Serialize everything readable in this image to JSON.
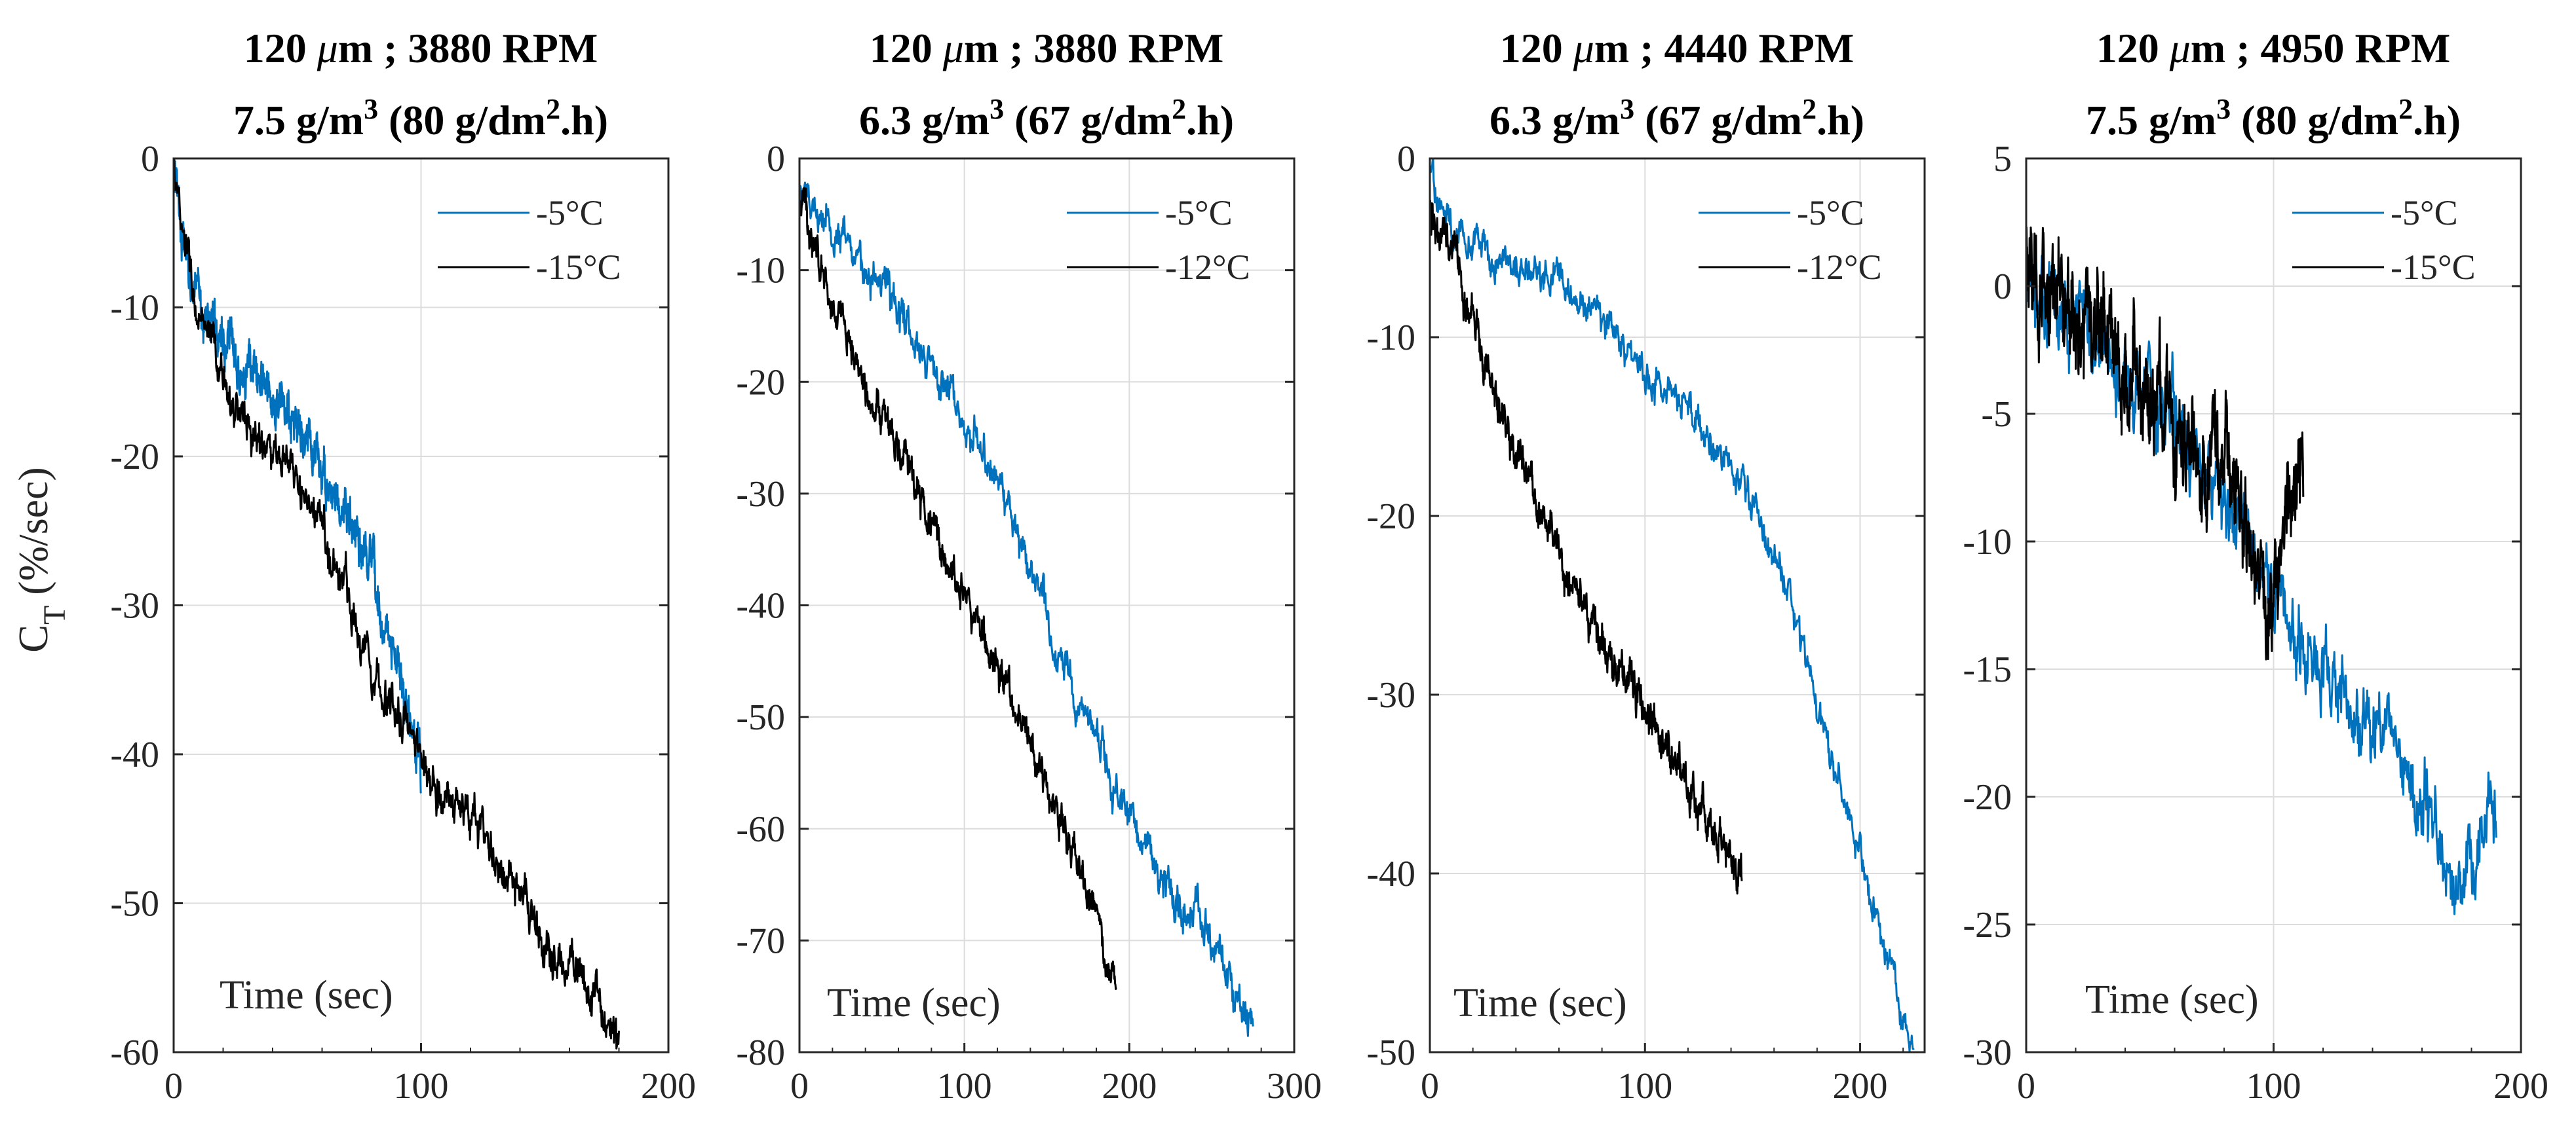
{
  "figure": {
    "ylabel_main": "C",
    "ylabel_sub": "T",
    "ylabel_rest": " (%/sec)"
  },
  "chart_data": [
    {
      "type": "line",
      "title_line1_a": "120 ",
      "title_line1_mu": "μ",
      "title_line1_b": "m ; 3880 RPM",
      "title_line2_a": "7.5 g/m",
      "title_line2_sup": "3",
      "title_line2_b": " (80 g/dm",
      "title_line2_sup2": "2",
      "title_line2_c": ".h)",
      "xlabel": "Time (sec)",
      "ylabel": "CT (%/sec)",
      "xlim": [
        0,
        200
      ],
      "ylim": [
        -60,
        0
      ],
      "xticks": [
        0,
        100,
        200
      ],
      "yticks": [
        0,
        -10,
        -20,
        -30,
        -40,
        -50,
        -60
      ],
      "xtick_labels": [
        "0",
        "100",
        "200"
      ],
      "ytick_labels": [
        "0",
        "-10",
        "-20",
        "-30",
        "-40",
        "-50",
        "-60"
      ],
      "grid": true,
      "legend_position": "top-right",
      "series": [
        {
          "name": "-5°C",
          "color": "#0072BD",
          "x_end": 100,
          "noise": 1.6,
          "points": [
            [
              0,
              0
            ],
            [
              2,
              -4
            ],
            [
              5,
              -7
            ],
            [
              10,
              -10
            ],
            [
              20,
              -12
            ],
            [
              30,
              -14
            ],
            [
              40,
              -16
            ],
            [
              50,
              -18
            ],
            [
              60,
              -21
            ],
            [
              70,
              -24
            ],
            [
              80,
              -28
            ],
            [
              90,
              -34
            ],
            [
              100,
              -41
            ]
          ]
        },
        {
          "name": "-15°C",
          "color": "#000000",
          "x_end": 180,
          "noise": 1.5,
          "points": [
            [
              0,
              0
            ],
            [
              3,
              -5
            ],
            [
              6,
              -7
            ],
            [
              10,
              -11
            ],
            [
              20,
              -15
            ],
            [
              30,
              -18
            ],
            [
              40,
              -20
            ],
            [
              50,
              -22
            ],
            [
              60,
              -25
            ],
            [
              70,
              -29
            ],
            [
              80,
              -34
            ],
            [
              90,
              -37
            ],
            [
              100,
              -40
            ],
            [
              110,
              -43
            ],
            [
              120,
              -44
            ],
            [
              130,
              -47
            ],
            [
              140,
              -50
            ],
            [
              150,
              -53
            ],
            [
              160,
              -54
            ],
            [
              170,
              -56
            ],
            [
              180,
              -60
            ]
          ]
        }
      ]
    },
    {
      "type": "line",
      "title_line1_a": "120 ",
      "title_line1_mu": "μ",
      "title_line1_b": "m ; 3880 RPM",
      "title_line2_a": "6.3 g/m",
      "title_line2_sup": "3",
      "title_line2_b": " (67 g/dm",
      "title_line2_sup2": "2",
      "title_line2_c": ".h)",
      "xlabel": "Time (sec)",
      "ylabel": "",
      "xlim": [
        0,
        300
      ],
      "ylim": [
        -80,
        0
      ],
      "xticks": [
        0,
        100,
        200,
        300
      ],
      "yticks": [
        0,
        -10,
        -20,
        -30,
        -40,
        -50,
        -60,
        -70,
        -80
      ],
      "xtick_labels": [
        "0",
        "100",
        "200",
        "300"
      ],
      "ytick_labels": [
        "0",
        "-10",
        "-20",
        "-30",
        "-40",
        "-50",
        "-60",
        "-70",
        "-80"
      ],
      "grid": true,
      "legend_position": "top-right",
      "series": [
        {
          "name": "-5°C",
          "color": "#0072BD",
          "x_end": 275,
          "noise": 1.8,
          "points": [
            [
              0,
              -3
            ],
            [
              20,
              -6
            ],
            [
              40,
              -10
            ],
            [
              60,
              -13
            ],
            [
              80,
              -18
            ],
            [
              100,
              -23
            ],
            [
              120,
              -29
            ],
            [
              140,
              -36
            ],
            [
              160,
              -45
            ],
            [
              180,
              -52
            ],
            [
              200,
              -59
            ],
            [
              220,
              -64
            ],
            [
              240,
              -68
            ],
            [
              260,
              -73
            ],
            [
              275,
              -77
            ]
          ]
        },
        {
          "name": "-12°C",
          "color": "#000000",
          "x_end": 192,
          "noise": 1.6,
          "points": [
            [
              0,
              -3
            ],
            [
              10,
              -8
            ],
            [
              20,
              -13
            ],
            [
              30,
              -16
            ],
            [
              40,
              -20
            ],
            [
              60,
              -26
            ],
            [
              80,
              -33
            ],
            [
              100,
              -39
            ],
            [
              120,
              -45
            ],
            [
              140,
              -52
            ],
            [
              160,
              -60
            ],
            [
              180,
              -68
            ],
            [
              192,
              -75
            ]
          ]
        }
      ]
    },
    {
      "type": "line",
      "title_line1_a": "120 ",
      "title_line1_mu": "μ",
      "title_line1_b": "m ; 4440 RPM",
      "title_line2_a": "6.3 g/m",
      "title_line2_sup": "3",
      "title_line2_b": " (67 g/dm",
      "title_line2_sup2": "2",
      "title_line2_c": ".h)",
      "xlabel": "Time (sec)",
      "ylabel": "",
      "xlim": [
        0,
        230
      ],
      "ylim": [
        -50,
        0
      ],
      "xticks": [
        0,
        100,
        200
      ],
      "yticks": [
        0,
        -10,
        -20,
        -30,
        -40,
        -50
      ],
      "xtick_labels": [
        "0",
        "100",
        "200"
      ],
      "ytick_labels": [
        "0",
        "-10",
        "-20",
        "-30",
        "-40",
        "-50"
      ],
      "grid": true,
      "legend_position": "top-right",
      "series": [
        {
          "name": "-5°C",
          "color": "#0072BD",
          "x_end": 225,
          "noise": 1.0,
          "points": [
            [
              0,
              0
            ],
            [
              3,
              -2
            ],
            [
              10,
              -4
            ],
            [
              20,
              -5
            ],
            [
              40,
              -6
            ],
            [
              60,
              -7
            ],
            [
              80,
              -9
            ],
            [
              100,
              -12
            ],
            [
              120,
              -14
            ],
            [
              140,
              -17
            ],
            [
              150,
              -19
            ],
            [
              160,
              -22
            ],
            [
              170,
              -26
            ],
            [
              180,
              -30
            ],
            [
              190,
              -35
            ],
            [
              200,
              -39
            ],
            [
              210,
              -44
            ],
            [
              220,
              -48
            ],
            [
              225,
              -50
            ]
          ]
        },
        {
          "name": "-12°C",
          "color": "#000000",
          "x_end": 145,
          "noise": 1.1,
          "points": [
            [
              0,
              -3
            ],
            [
              10,
              -5
            ],
            [
              20,
              -9
            ],
            [
              30,
              -13
            ],
            [
              40,
              -16
            ],
            [
              50,
              -19
            ],
            [
              60,
              -22
            ],
            [
              70,
              -25
            ],
            [
              80,
              -27
            ],
            [
              90,
              -29
            ],
            [
              100,
              -31
            ],
            [
              110,
              -33
            ],
            [
              120,
              -35
            ],
            [
              130,
              -37
            ],
            [
              140,
              -39
            ],
            [
              145,
              -40
            ]
          ]
        }
      ]
    },
    {
      "type": "line",
      "title_line1_a": "120 ",
      "title_line1_mu": "μ",
      "title_line1_b": "m ; 4950 RPM",
      "title_line2_a": "7.5 g/m",
      "title_line2_sup": "3",
      "title_line2_b": " (80 g/dm",
      "title_line2_sup2": "2",
      "title_line2_c": ".h)",
      "xlabel": "Time (sec)",
      "ylabel": "",
      "xlim": [
        0,
        200
      ],
      "ylim": [
        -30,
        5
      ],
      "xticks": [
        0,
        100,
        200
      ],
      "yticks": [
        5,
        0,
        -5,
        -10,
        -15,
        -20,
        -25,
        -30
      ],
      "xtick_labels": [
        "0",
        "100",
        "200"
      ],
      "ytick_labels": [
        "5",
        "0",
        "-5",
        "-10",
        "-15",
        "-20",
        "-25",
        "-30"
      ],
      "grid": true,
      "legend_position": "top-right",
      "series": [
        {
          "name": "-5°C",
          "color": "#0072BD",
          "x_end": 190,
          "noise": 1.6,
          "points": [
            [
              0,
              0
            ],
            [
              10,
              -1
            ],
            [
              20,
              -2
            ],
            [
              40,
              -3
            ],
            [
              60,
              -5
            ],
            [
              80,
              -8
            ],
            [
              100,
              -12
            ],
            [
              120,
              -15
            ],
            [
              140,
              -17
            ],
            [
              160,
              -20
            ],
            [
              180,
              -24
            ],
            [
              185,
              -22
            ],
            [
              190,
              -21
            ]
          ]
        },
        {
          "name": "-15°C",
          "color": "#000000",
          "x_end": 112,
          "noise": 2.0,
          "points": [
            [
              0,
              1
            ],
            [
              10,
              0
            ],
            [
              20,
              -1
            ],
            [
              40,
              -3
            ],
            [
              60,
              -5
            ],
            [
              80,
              -7
            ],
            [
              90,
              -10
            ],
            [
              100,
              -12
            ],
            [
              105,
              -9
            ],
            [
              110,
              -7
            ],
            [
              112,
              -8
            ]
          ]
        }
      ]
    }
  ]
}
